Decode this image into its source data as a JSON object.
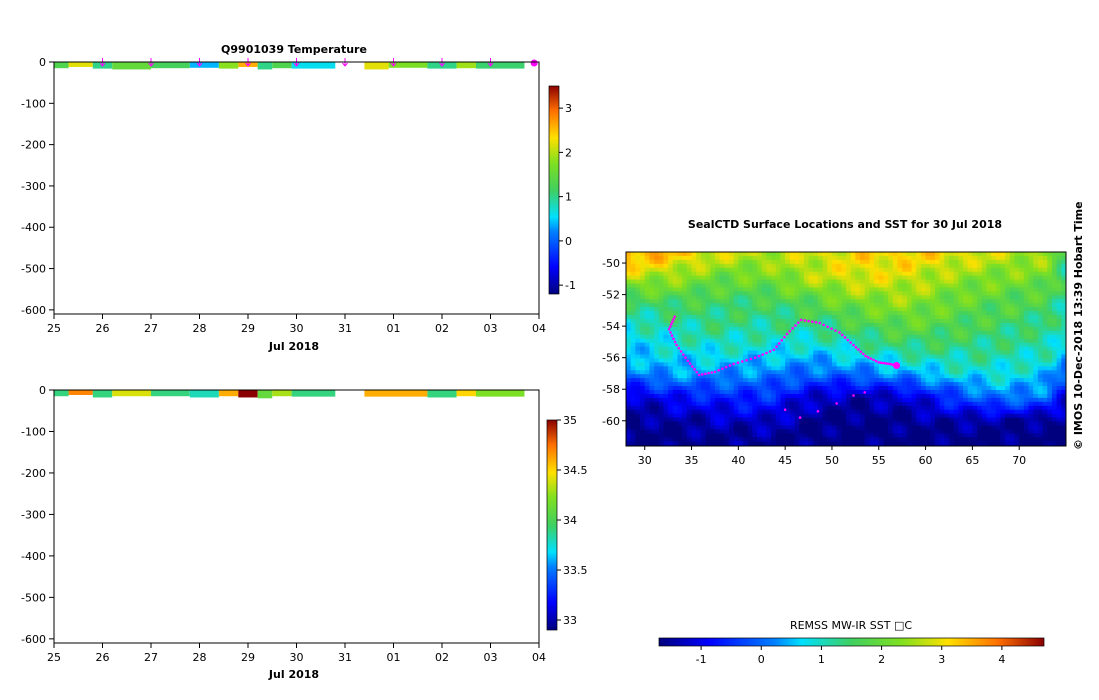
{
  "chart_data": [
    {
      "type": "heatmap",
      "title": "Q9901039  Temperature",
      "xlabel": "Jul 2018",
      "x_ticks": [
        "25",
        "26",
        "27",
        "28",
        "29",
        "30",
        "31",
        "01",
        "02",
        "03",
        "04"
      ],
      "y_ticks": [
        "0",
        "-100",
        "-200",
        "-300",
        "-400",
        "-500",
        "-600"
      ],
      "ylim": [
        -610,
        0
      ],
      "colorbar": {
        "ticks": [
          "-1",
          "0",
          "1",
          "2",
          "3"
        ],
        "range": [
          -1.2,
          3.5
        ]
      },
      "profile_marker_days": [
        26.0,
        27.0,
        28.0,
        29.0,
        30.0,
        31.0,
        32.0,
        33.0,
        34.0,
        34.9
      ],
      "segments": [
        {
          "start": 25.0,
          "end": 25.3,
          "depth": 15,
          "value": 1.3
        },
        {
          "start": 25.3,
          "end": 25.8,
          "depth": 12,
          "value": 2.2
        },
        {
          "start": 25.8,
          "end": 26.2,
          "depth": 16,
          "value": 1.0
        },
        {
          "start": 26.2,
          "end": 27.0,
          "depth": 18,
          "value": 1.5
        },
        {
          "start": 27.0,
          "end": 27.8,
          "depth": 15,
          "value": 1.2
        },
        {
          "start": 27.8,
          "end": 28.4,
          "depth": 14,
          "value": 0.4
        },
        {
          "start": 28.4,
          "end": 28.8,
          "depth": 16,
          "value": 1.8
        },
        {
          "start": 28.8,
          "end": 29.2,
          "depth": 12,
          "value": 2.6
        },
        {
          "start": 29.2,
          "end": 29.5,
          "depth": 18,
          "value": 1.0
        },
        {
          "start": 29.5,
          "end": 29.9,
          "depth": 15,
          "value": 1.3
        },
        {
          "start": 29.9,
          "end": 30.8,
          "depth": 16,
          "value": 0.6
        },
        {
          "start": 31.4,
          "end": 31.9,
          "depth": 18,
          "value": 2.2
        },
        {
          "start": 31.9,
          "end": 32.7,
          "depth": 14,
          "value": 1.7
        },
        {
          "start": 32.7,
          "end": 33.3,
          "depth": 16,
          "value": 1.0
        },
        {
          "start": 33.3,
          "end": 33.7,
          "depth": 15,
          "value": 1.9
        },
        {
          "start": 33.7,
          "end": 34.7,
          "depth": 16,
          "value": 1.1
        }
      ]
    },
    {
      "type": "heatmap",
      "title": "",
      "xlabel": "Jul 2018",
      "x_ticks": [
        "25",
        "26",
        "27",
        "28",
        "29",
        "30",
        "31",
        "01",
        "02",
        "03",
        "04"
      ],
      "y_ticks": [
        "0",
        "-100",
        "-200",
        "-300",
        "-400",
        "-500",
        "-600"
      ],
      "ylim": [
        -610,
        0
      ],
      "colorbar": {
        "ticks": [
          "33",
          "33.5",
          "34",
          "34.5",
          "35"
        ],
        "range": [
          32.9,
          35.0
        ]
      },
      "segments": [
        {
          "start": 25.0,
          "end": 25.3,
          "depth": 15,
          "value": 33.9
        },
        {
          "start": 25.3,
          "end": 25.8,
          "depth": 12,
          "value": 34.7
        },
        {
          "start": 25.8,
          "end": 26.2,
          "depth": 18,
          "value": 33.9
        },
        {
          "start": 26.2,
          "end": 27.0,
          "depth": 15,
          "value": 34.4
        },
        {
          "start": 27.0,
          "end": 27.8,
          "depth": 15,
          "value": 33.9
        },
        {
          "start": 27.8,
          "end": 28.4,
          "depth": 18,
          "value": 33.8
        },
        {
          "start": 28.4,
          "end": 28.8,
          "depth": 15,
          "value": 34.6
        },
        {
          "start": 28.8,
          "end": 29.2,
          "depth": 18,
          "value": 35.0
        },
        {
          "start": 29.2,
          "end": 29.5,
          "depth": 20,
          "value": 34.1
        },
        {
          "start": 29.5,
          "end": 29.9,
          "depth": 15,
          "value": 34.3
        },
        {
          "start": 29.9,
          "end": 30.8,
          "depth": 16,
          "value": 33.9
        },
        {
          "start": 31.4,
          "end": 32.7,
          "depth": 16,
          "value": 34.6
        },
        {
          "start": 32.7,
          "end": 33.3,
          "depth": 18,
          "value": 33.9
        },
        {
          "start": 33.3,
          "end": 33.7,
          "depth": 15,
          "value": 34.5
        },
        {
          "start": 33.7,
          "end": 34.7,
          "depth": 16,
          "value": 34.2
        }
      ]
    },
    {
      "type": "heatmap",
      "title": "SealCTD Surface Locations and SST for 30 Jul 2018",
      "x_ticks": [
        "30",
        "35",
        "40",
        "45",
        "50",
        "55",
        "60",
        "65",
        "70"
      ],
      "y_ticks": [
        "-50",
        "-52",
        "-54",
        "-56",
        "-58",
        "-60"
      ],
      "xlim": [
        28,
        75
      ],
      "ylim": [
        -61.6,
        -49.3
      ],
      "colorbar": {
        "label": "REMSS MW-IR SST □C",
        "ticks": [
          "-1",
          "0",
          "1",
          "2",
          "3",
          "4"
        ],
        "range": [
          -1.7,
          4.7
        ]
      },
      "sst_rows": [
        {
          "lat": -49.5,
          "values": [
            3.6,
            3.3,
            2.8,
            2.6,
            2.8,
            3.1,
            3.2,
            3.0,
            2.7,
            2.5,
            1.3
          ]
        },
        {
          "lat": -51.0,
          "values": [
            2.6,
            2.4,
            2.0,
            2.1,
            2.6,
            2.9,
            2.8,
            2.4,
            2.2,
            2.1,
            1.3
          ]
        },
        {
          "lat": -52.5,
          "values": [
            1.4,
            1.6,
            1.5,
            1.5,
            1.8,
            2.2,
            2.4,
            2.0,
            1.8,
            1.6,
            1.2
          ]
        },
        {
          "lat": -54.0,
          "values": [
            0.9,
            1.1,
            1.3,
            1.2,
            1.3,
            1.6,
            1.9,
            1.7,
            1.5,
            1.3,
            1.0
          ]
        },
        {
          "lat": -55.5,
          "values": [
            0.6,
            0.8,
            0.9,
            0.8,
            0.7,
            1.0,
            1.3,
            1.3,
            1.2,
            1.1,
            0.7
          ]
        },
        {
          "lat": -57.0,
          "values": [
            0.2,
            0.4,
            0.3,
            0.2,
            0.0,
            0.1,
            0.4,
            0.8,
            0.9,
            0.6,
            -0.2
          ]
        },
        {
          "lat": -58.5,
          "values": [
            -1.3,
            -0.8,
            -0.6,
            -0.5,
            -1.2,
            -1.4,
            -1.2,
            -0.4,
            0.2,
            0.0,
            -1.0
          ]
        },
        {
          "lat": -60.0,
          "values": [
            -1.6,
            -1.5,
            -1.3,
            -1.2,
            -1.6,
            -1.7,
            -1.6,
            -1.4,
            -1.5,
            -1.6,
            -1.6
          ]
        },
        {
          "lat": -61.2,
          "values": [
            -1.7,
            -1.7,
            -1.6,
            -1.6,
            -1.7,
            -1.7,
            -1.7,
            -1.7,
            -1.7,
            -1.7,
            -1.7
          ]
        }
      ],
      "sst_lons": [
        28,
        33,
        38,
        43,
        48,
        53,
        58,
        63,
        68,
        73,
        75
      ],
      "track": [
        {
          "lon": 33.2,
          "lat": -53.4
        },
        {
          "lon": 32.6,
          "lat": -54.2
        },
        {
          "lon": 33.4,
          "lat": -55.2
        },
        {
          "lon": 34.6,
          "lat": -56.2
        },
        {
          "lon": 35.8,
          "lat": -57.1
        },
        {
          "lon": 37.5,
          "lat": -56.9
        },
        {
          "lon": 39.5,
          "lat": -56.4
        },
        {
          "lon": 41.8,
          "lat": -56.0
        },
        {
          "lon": 43.8,
          "lat": -55.5
        },
        {
          "lon": 45.2,
          "lat": -54.5
        },
        {
          "lon": 46.7,
          "lat": -53.6
        },
        {
          "lon": 48.7,
          "lat": -53.8
        },
        {
          "lon": 50.8,
          "lat": -54.4
        },
        {
          "lon": 52.3,
          "lat": -55.2
        },
        {
          "lon": 53.6,
          "lat": -55.9
        },
        {
          "lon": 55.0,
          "lat": -56.3
        },
        {
          "lon": 56.2,
          "lat": -56.4
        },
        {
          "lon": 56.9,
          "lat": -56.5
        }
      ],
      "track_south": [
        {
          "lon": 45.0,
          "lat": -59.3
        },
        {
          "lon": 46.6,
          "lat": -59.8
        },
        {
          "lon": 48.5,
          "lat": -59.4
        },
        {
          "lon": 50.5,
          "lat": -58.9
        },
        {
          "lon": 52.3,
          "lat": -58.4
        },
        {
          "lon": 53.5,
          "lat": -58.2
        }
      ],
      "highlight": {
        "lon": 56.9,
        "lat": -56.5
      }
    }
  ],
  "credit": "©  IMOS 10-Dec-2018 13:39 Hobart Time"
}
